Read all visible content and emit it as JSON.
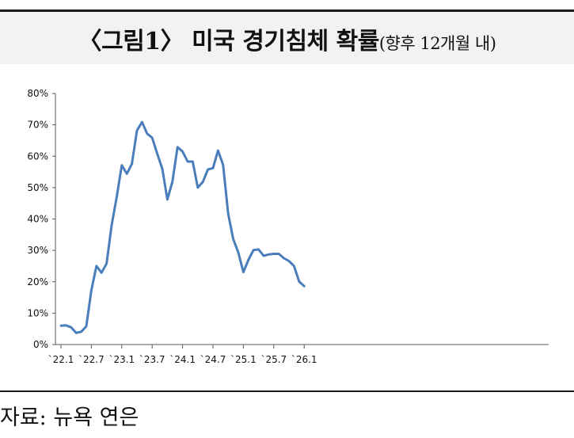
{
  "header": {
    "title": "〈그림1〉 미국 경기침체 확률",
    "subtitle": "(향후 12개월 내)"
  },
  "footer": {
    "source": "자료: 뉴욕 연은"
  },
  "colors": {
    "line": "#4a7ebb",
    "axis": "#595959",
    "title_band": "#f2f2f2"
  },
  "chart_data": {
    "type": "line",
    "title": "〈그림1〉 미국 경기침체 확률 (향후 12개월 내)",
    "xlabel": "",
    "ylabel": "",
    "ylim": [
      0,
      80
    ],
    "y_unit": "%",
    "y_ticks": [
      "0%",
      "10%",
      "20%",
      "30%",
      "40%",
      "50%",
      "60%",
      "70%",
      "80%"
    ],
    "x_tick_labels": [
      "`22.1",
      "`22.7",
      "`23.1",
      "`23.7",
      "`24.1",
      "`24.7",
      "`25.1",
      "`25.7",
      "`26.1"
    ],
    "grid": false,
    "legend": "none",
    "x": [
      "22.1",
      "22.2",
      "22.3",
      "22.4",
      "22.5",
      "22.6",
      "22.7",
      "22.8",
      "22.9",
      "22.10",
      "22.11",
      "22.12",
      "23.1",
      "23.2",
      "23.3",
      "23.4",
      "23.5",
      "23.6",
      "23.7",
      "23.8",
      "23.9",
      "23.10",
      "23.11",
      "23.12",
      "24.1",
      "24.2",
      "24.3",
      "24.4",
      "24.5",
      "24.6",
      "24.7",
      "24.8",
      "24.9",
      "24.10",
      "24.11",
      "24.12",
      "25.1",
      "25.2",
      "25.3",
      "25.4",
      "25.5",
      "25.6",
      "25.7",
      "25.8",
      "25.9",
      "25.10",
      "25.11",
      "25.12",
      "26.1"
    ],
    "series": [
      {
        "values": [
          6.0,
          6.1,
          5.5,
          3.7,
          4.1,
          5.8,
          17.3,
          25.0,
          22.9,
          25.8,
          38.0,
          47.0,
          57.1,
          54.4,
          57.6,
          68.2,
          70.9,
          67.2,
          65.9,
          60.8,
          56.0,
          46.2,
          51.9,
          62.9,
          61.5,
          58.3,
          58.3,
          50.0,
          51.8,
          55.8,
          56.2,
          61.8,
          57.2,
          41.7,
          33.6,
          29.3,
          23.1,
          27.0,
          30.1,
          30.3,
          28.3,
          28.7,
          28.9,
          28.9,
          27.5,
          26.6,
          25.0,
          20.1,
          18.6
        ]
      }
    ]
  }
}
